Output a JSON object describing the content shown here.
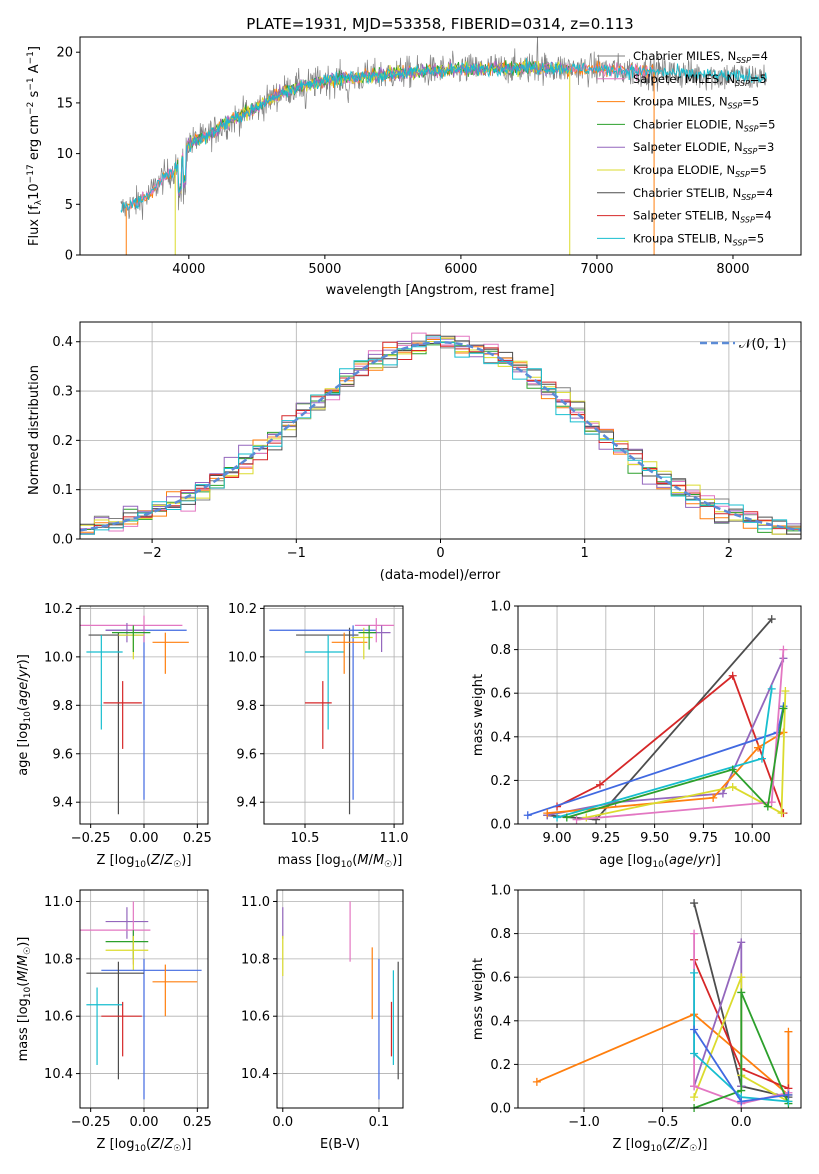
{
  "colors": {
    "chabrier_miles": "#7f7f7f",
    "salpeter_miles": "#e377c2",
    "kroupa_miles": "#ff7f0e",
    "chabrier_elodie": "#2ca02c",
    "salpeter_elodie": "#9467bd",
    "kroupa_elodie": "#dbdb2d",
    "chabrier_stelib": "#4d4d4d",
    "salpeter_stelib": "#d62728",
    "kroupa_stelib": "#17becf",
    "blue": "#4169e1",
    "normal": "#5b8bd6"
  },
  "chart_data": [
    {
      "id": "spectrum",
      "type": "line",
      "title": "PLATE=1931, MJD=53358, FIBERID=0314, z=0.113",
      "xlabel": "wavelength [Angstrom, rest frame]",
      "ylabel": "Flux [f_λ10^-17 erg cm^-2 s^-1 A^-1]",
      "xlim": [
        3200,
        8500
      ],
      "ylim": [
        0,
        21.5
      ],
      "xticks": [
        4000,
        5000,
        6000,
        7000,
        8000
      ],
      "yticks": [
        0,
        5,
        10,
        15,
        20
      ],
      "legend_position": "right",
      "legend": [
        {
          "label": "Chabrier MILES, N",
          "sub": "SSP",
          "tail": "=4"
        },
        {
          "label": "Salpeter MILES, N",
          "sub": "SSP",
          "tail": "=5"
        },
        {
          "label": "Kroupa MILES, N",
          "sub": "SSP",
          "tail": "=5"
        },
        {
          "label": "Chabrier ELODIE, N",
          "sub": "SSP",
          "tail": "=5"
        },
        {
          "label": "Salpeter ELODIE, N",
          "sub": "SSP",
          "tail": "=3"
        },
        {
          "label": "Kroupa ELODIE, N",
          "sub": "SSP",
          "tail": "=5"
        },
        {
          "label": "Chabrier STELIB, N",
          "sub": "SSP",
          "tail": "=4"
        },
        {
          "label": "Salpeter STELIB, N",
          "sub": "SSP",
          "tail": "=4"
        },
        {
          "label": "Kroupa STELIB, N",
          "sub": "SSP",
          "tail": "=5"
        }
      ],
      "continuum": {
        "x": [
          3500,
          3600,
          3700,
          3800,
          3900,
          4000,
          4100,
          4300,
          4500,
          4700,
          5000,
          5300,
          5600,
          6000,
          6500,
          7000,
          7500,
          8000,
          8250
        ],
        "y": [
          4.5,
          5.0,
          5.8,
          7.5,
          8.5,
          11.0,
          11.5,
          13.2,
          14.5,
          16.2,
          17.2,
          17.6,
          18.0,
          18.3,
          18.5,
          18.3,
          18.0,
          17.6,
          17.5
        ]
      }
    },
    {
      "id": "residuals",
      "type": "step",
      "xlabel": "(data-model)/error",
      "ylabel": "Normed distribution",
      "xlim": [
        -2.5,
        2.5
      ],
      "ylim": [
        0,
        0.44
      ],
      "xticks": [
        -2,
        -1,
        0,
        1,
        2
      ],
      "yticks": [
        0.0,
        0.1,
        0.2,
        0.3,
        0.4
      ],
      "legend_position": "top-right",
      "legend": [
        {
          "label": "𝒩(0, 1)"
        }
      ]
    },
    {
      "id": "age_vs_Z",
      "type": "errorbar",
      "xlabel": "Z [log10(Z/Z☉)]",
      "ylabel": "age [log10(age/yr)]",
      "xlim": [
        -0.3,
        0.3
      ],
      "ylim": [
        9.31,
        10.21
      ],
      "xticks": [
        -0.25,
        0.0,
        0.25
      ],
      "yticks": [
        9.4,
        9.6,
        9.8,
        10.0,
        10.2
      ],
      "points": [
        {
          "c": "chabrier_stelib",
          "x": -0.12,
          "xl": -0.26,
          "xh": 0.0,
          "y": 10.09,
          "yl": 9.35,
          "yh": 10.1
        },
        {
          "c": "kroupa_stelib",
          "x": -0.2,
          "xl": -0.27,
          "xh": -0.1,
          "y": 10.02,
          "yl": 9.7,
          "yh": 10.09
        },
        {
          "c": "blue",
          "x": 0.0,
          "xl": -0.18,
          "xh": 0.2,
          "y": 10.11,
          "yl": 9.41,
          "yh": 10.13
        },
        {
          "c": "salpeter_stelib",
          "x": -0.1,
          "xl": -0.19,
          "xh": -0.01,
          "y": 9.81,
          "yl": 9.62,
          "yh": 9.9
        },
        {
          "c": "kroupa_miles",
          "x": 0.1,
          "xl": 0.04,
          "xh": 0.21,
          "y": 10.06,
          "yl": 9.93,
          "yh": 10.1
        },
        {
          "c": "salpeter_miles",
          "x": 0.0,
          "xl": -0.3,
          "xh": 0.18,
          "y": 10.13,
          "yl": 10.06,
          "yh": 10.17
        },
        {
          "c": "salpeter_elodie",
          "x": -0.08,
          "xl": -0.18,
          "xh": 0.01,
          "y": 10.11,
          "yl": 10.06,
          "yh": 10.14
        },
        {
          "c": "kroupa_elodie",
          "x": -0.05,
          "xl": -0.12,
          "xh": 0.0,
          "y": 10.09,
          "yl": 9.99,
          "yh": 10.12
        },
        {
          "c": "chabrier_elodie",
          "x": -0.05,
          "xl": -0.15,
          "xh": 0.03,
          "y": 10.1,
          "yl": 10.02,
          "yh": 10.13
        }
      ]
    },
    {
      "id": "age_vs_mass",
      "type": "errorbar",
      "xlabel": "mass [log10(M/M☉)]",
      "ylabel": "",
      "xlim": [
        10.27,
        11.05
      ],
      "ylim": [
        9.31,
        10.21
      ],
      "xticks": [
        10.5,
        11.0
      ],
      "yticks": [
        9.4,
        9.6,
        9.8,
        10.0,
        10.2
      ],
      "points": [
        {
          "c": "chabrier_stelib",
          "x": 10.75,
          "xl": 10.45,
          "xh": 10.8,
          "y": 10.09,
          "yl": 9.35,
          "yh": 10.12
        },
        {
          "c": "kroupa_stelib",
          "x": 10.63,
          "xl": 10.5,
          "xh": 10.72,
          "y": 10.02,
          "yl": 9.7,
          "yh": 10.09
        },
        {
          "c": "blue",
          "x": 10.77,
          "xl": 10.3,
          "xh": 10.9,
          "y": 10.11,
          "yl": 9.41,
          "yh": 10.13
        },
        {
          "c": "salpeter_stelib",
          "x": 10.6,
          "xl": 10.5,
          "xh": 10.65,
          "y": 9.81,
          "yl": 9.62,
          "yh": 9.9
        },
        {
          "c": "kroupa_miles",
          "x": 10.72,
          "xl": 10.65,
          "xh": 10.85,
          "y": 10.06,
          "yl": 9.93,
          "yh": 10.1
        },
        {
          "c": "salpeter_miles",
          "x": 10.9,
          "xl": 10.78,
          "xh": 11.0,
          "y": 10.13,
          "yl": 10.06,
          "yh": 10.16
        },
        {
          "c": "salpeter_elodie",
          "x": 10.93,
          "xl": 10.84,
          "xh": 10.98,
          "y": 10.1,
          "yl": 10.02,
          "yh": 10.13
        },
        {
          "c": "kroupa_elodie",
          "x": 10.83,
          "xl": 10.76,
          "xh": 10.88,
          "y": 10.08,
          "yl": 9.99,
          "yh": 10.12
        },
        {
          "c": "chabrier_elodie",
          "x": 10.86,
          "xl": 10.8,
          "xh": 10.9,
          "y": 10.1,
          "yl": 10.03,
          "yh": 10.13
        }
      ]
    },
    {
      "id": "weight_vs_age",
      "type": "line",
      "xlabel": "age [log10(age/yr)]",
      "ylabel": "mass weight",
      "xlim": [
        8.8,
        10.25
      ],
      "ylim": [
        0,
        1.0
      ],
      "xticks": [
        9.0,
        9.25,
        9.5,
        9.75,
        10.0
      ],
      "yticks": [
        0.0,
        0.2,
        0.4,
        0.6,
        0.8,
        1.0
      ],
      "series": [
        {
          "c": "chabrier_stelib",
          "x": [
            10.1,
            9.2,
            8.95
          ],
          "y": [
            0.94,
            0.02,
            0.04
          ]
        },
        {
          "c": "salpeter_stelib",
          "x": [
            9.0,
            9.22,
            9.9,
            10.16
          ],
          "y": [
            0.08,
            0.18,
            0.68,
            0.05
          ]
        },
        {
          "c": "salpeter_elodie",
          "x": [
            8.95,
            9.3,
            9.85,
            10.16
          ],
          "y": [
            0.04,
            0.1,
            0.14,
            0.76
          ]
        },
        {
          "c": "blue",
          "x": [
            8.85,
            10.13,
            10.16
          ],
          "y": [
            0.04,
            0.42,
            0.54
          ]
        },
        {
          "c": "kroupa_miles",
          "x": [
            8.95,
            9.8,
            10.03,
            10.16
          ],
          "y": [
            0.05,
            0.12,
            0.35,
            0.42
          ]
        },
        {
          "c": "kroupa_elodie",
          "x": [
            9.15,
            9.9,
            10.15,
            10.17
          ],
          "y": [
            0.03,
            0.17,
            0.05,
            0.61
          ]
        },
        {
          "c": "kroupa_stelib",
          "x": [
            9.0,
            10.05,
            10.1
          ],
          "y": [
            0.03,
            0.3,
            0.62
          ]
        },
        {
          "c": "salpeter_miles",
          "x": [
            9.1,
            10.1,
            10.16
          ],
          "y": [
            0.02,
            0.1,
            0.8
          ]
        },
        {
          "c": "chabrier_elodie",
          "x": [
            9.05,
            9.9,
            10.08,
            10.16
          ],
          "y": [
            0.03,
            0.25,
            0.08,
            0.53
          ]
        }
      ]
    },
    {
      "id": "mass_vs_Z",
      "type": "errorbar",
      "xlabel": "Z [log10(Z/Z☉)]",
      "ylabel": "mass [log10(M/M☉)]",
      "xlim": [
        -0.3,
        0.3
      ],
      "ylim": [
        10.28,
        11.04
      ],
      "xticks": [
        -0.25,
        0.0,
        0.25
      ],
      "yticks": [
        10.4,
        10.6,
        10.8,
        11.0
      ],
      "points": [
        {
          "c": "salpeter_elodie",
          "x": -0.08,
          "xl": -0.18,
          "xh": 0.02,
          "y": 10.93,
          "yl": 10.87,
          "yh": 10.98
        },
        {
          "c": "salpeter_miles",
          "x": -0.05,
          "xl": -0.3,
          "xh": 0.03,
          "y": 10.9,
          "yl": 10.78,
          "yh": 11.0
        },
        {
          "c": "chabrier_elodie",
          "x": -0.05,
          "xl": -0.18,
          "xh": 0.02,
          "y": 10.86,
          "yl": 10.8,
          "yh": 10.9
        },
        {
          "c": "kroupa_elodie",
          "x": -0.05,
          "xl": -0.18,
          "xh": 0.02,
          "y": 10.83,
          "yl": 10.76,
          "yh": 10.88
        },
        {
          "c": "blue",
          "x": 0.0,
          "xl": -0.2,
          "xh": 0.27,
          "y": 10.76,
          "yl": 10.31,
          "yh": 10.8
        },
        {
          "c": "chabrier_stelib",
          "x": -0.12,
          "xl": -0.27,
          "xh": 0.0,
          "y": 10.75,
          "yl": 10.38,
          "yh": 10.79
        },
        {
          "c": "kroupa_miles",
          "x": 0.1,
          "xl": 0.04,
          "xh": 0.25,
          "y": 10.72,
          "yl": 10.6,
          "yh": 10.78
        },
        {
          "c": "kroupa_stelib",
          "x": -0.22,
          "xl": -0.27,
          "xh": -0.1,
          "y": 10.64,
          "yl": 10.43,
          "yh": 10.7
        },
        {
          "c": "salpeter_stelib",
          "x": -0.1,
          "xl": -0.2,
          "xh": -0.01,
          "y": 10.6,
          "yl": 10.46,
          "yh": 10.65
        }
      ]
    },
    {
      "id": "mass_vs_ebv",
      "type": "errorbar",
      "xlabel": "E(B-V)",
      "ylabel": "",
      "xlim": [
        -0.006,
        0.125
      ],
      "ylim": [
        10.28,
        11.04
      ],
      "xticks": [
        0.0,
        0.1
      ],
      "yticks": [
        10.4,
        10.6,
        10.8,
        11.0
      ],
      "points": [
        {
          "c": "salpeter_elodie",
          "x": 0.0,
          "xl": 0.0,
          "xh": 0.0,
          "y": 10.93,
          "yl": 10.87,
          "yh": 10.98
        },
        {
          "c": "kroupa_elodie",
          "x": 0.0,
          "xl": 0.0,
          "xh": 0.0,
          "y": 10.83,
          "yl": 10.74,
          "yh": 10.88
        },
        {
          "c": "salpeter_miles",
          "x": 0.07,
          "xl": 0.07,
          "xh": 0.07,
          "y": 10.9,
          "yl": 10.79,
          "yh": 11.0
        },
        {
          "c": "kroupa_miles",
          "x": 0.093,
          "xl": 0.093,
          "xh": 0.093,
          "y": 10.72,
          "yl": 10.59,
          "yh": 10.84
        },
        {
          "c": "blue",
          "x": 0.1,
          "xl": 0.1,
          "xh": 0.1,
          "y": 10.6,
          "yl": 10.31,
          "yh": 10.8
        },
        {
          "c": "salpeter_stelib",
          "x": 0.113,
          "xl": 0.113,
          "xh": 0.113,
          "y": 10.55,
          "yl": 10.46,
          "yh": 10.65
        },
        {
          "c": "kroupa_stelib",
          "x": 0.115,
          "xl": 0.115,
          "xh": 0.115,
          "y": 10.6,
          "yl": 10.43,
          "yh": 10.76
        },
        {
          "c": "chabrier_stelib",
          "x": 0.12,
          "xl": 0.12,
          "xh": 0.12,
          "y": 10.6,
          "yl": 10.38,
          "yh": 10.79
        }
      ]
    },
    {
      "id": "weight_vs_Z",
      "type": "line",
      "xlabel": "Z [log10(Z/Z☉)]",
      "ylabel": "mass weight",
      "xlim": [
        -1.42,
        0.38
      ],
      "ylim": [
        0,
        1.0
      ],
      "xticks": [
        -1.0,
        -0.5,
        0.0
      ],
      "yticks": [
        0.0,
        0.2,
        0.4,
        0.6,
        0.8,
        1.0
      ],
      "series": [
        {
          "c": "kroupa_miles",
          "x": [
            -1.3,
            -0.3,
            0.3,
            0.3
          ],
          "y": [
            0.12,
            0.43,
            0.06,
            0.35
          ]
        },
        {
          "c": "chabrier_stelib",
          "x": [
            -0.3,
            0.0,
            0.3
          ],
          "y": [
            0.94,
            0.1,
            0.05
          ]
        },
        {
          "c": "salpeter_stelib",
          "x": [
            -0.3,
            0.0,
            0.3
          ],
          "y": [
            0.68,
            0.18,
            0.09
          ]
        },
        {
          "c": "salpeter_elodie",
          "x": [
            -0.3,
            0.0,
            0.0
          ],
          "y": [
            0.1,
            0.76,
            0.1
          ]
        },
        {
          "c": "kroupa_elodie",
          "x": [
            -0.3,
            0.0,
            0.0,
            0.3
          ],
          "y": [
            0.05,
            0.6,
            0.15,
            0.03
          ]
        },
        {
          "c": "salpeter_miles",
          "x": [
            -0.3,
            -0.3,
            0.0,
            0.3
          ],
          "y": [
            0.8,
            0.1,
            0.02,
            0.07
          ]
        },
        {
          "c": "chabrier_elodie",
          "x": [
            -0.3,
            0.0,
            0.0,
            0.3
          ],
          "y": [
            0.0,
            0.08,
            0.53,
            0.02
          ]
        },
        {
          "c": "kroupa_stelib",
          "x": [
            -0.3,
            -0.3,
            0.0,
            0.3
          ],
          "y": [
            0.62,
            0.25,
            0.05,
            0.03
          ]
        },
        {
          "c": "blue",
          "x": [
            -0.3,
            0.0,
            0.3
          ],
          "y": [
            0.36,
            0.03,
            0.06
          ]
        }
      ]
    }
  ]
}
